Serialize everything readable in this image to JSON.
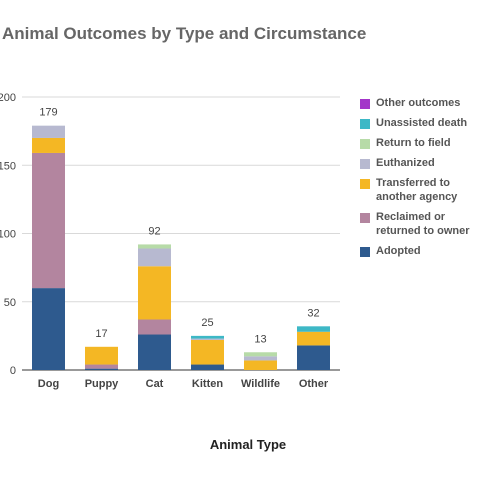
{
  "chart_data": {
    "type": "bar",
    "stacked": true,
    "title": "Animal Outcomes by Type and Circumstance",
    "xlabel": "Animal Type",
    "ylabel": "",
    "ylim": [
      0,
      200
    ],
    "yticks": [
      "200",
      "150",
      "100",
      "50",
      "0"
    ],
    "grid": true,
    "legend_position": "right",
    "categories": [
      "Dog",
      "Puppy",
      "Cat",
      "Kitten",
      "Wildlife",
      "Other"
    ],
    "totals": [
      "179",
      "17",
      "92",
      "25",
      "13",
      "32"
    ],
    "series": [
      {
        "name": "Adopted",
        "color": "#2e5a8e",
        "values": [
          60,
          1,
          26,
          4,
          0,
          18
        ]
      },
      {
        "name": "Reclaimed or returned to owner",
        "color": "#b3859f",
        "values": [
          99,
          3,
          11,
          0,
          0,
          0
        ]
      },
      {
        "name": "Transferred to another agency",
        "color": "#f4b724",
        "values": [
          11,
          13,
          39,
          18,
          7,
          10
        ]
      },
      {
        "name": "Euthanized",
        "color": "#b7b9d0",
        "values": [
          9,
          0,
          13,
          1,
          3,
          0
        ]
      },
      {
        "name": "Return to field",
        "color": "#b7dba8",
        "values": [
          0,
          0,
          3,
          0,
          3,
          0
        ]
      },
      {
        "name": "Unassisted death",
        "color": "#3db8c6",
        "values": [
          0,
          0,
          0,
          2,
          0,
          4
        ]
      },
      {
        "name": "Other outcomes",
        "color": "#a335c9",
        "values": [
          0,
          0,
          0,
          0,
          0,
          0
        ]
      }
    ]
  }
}
